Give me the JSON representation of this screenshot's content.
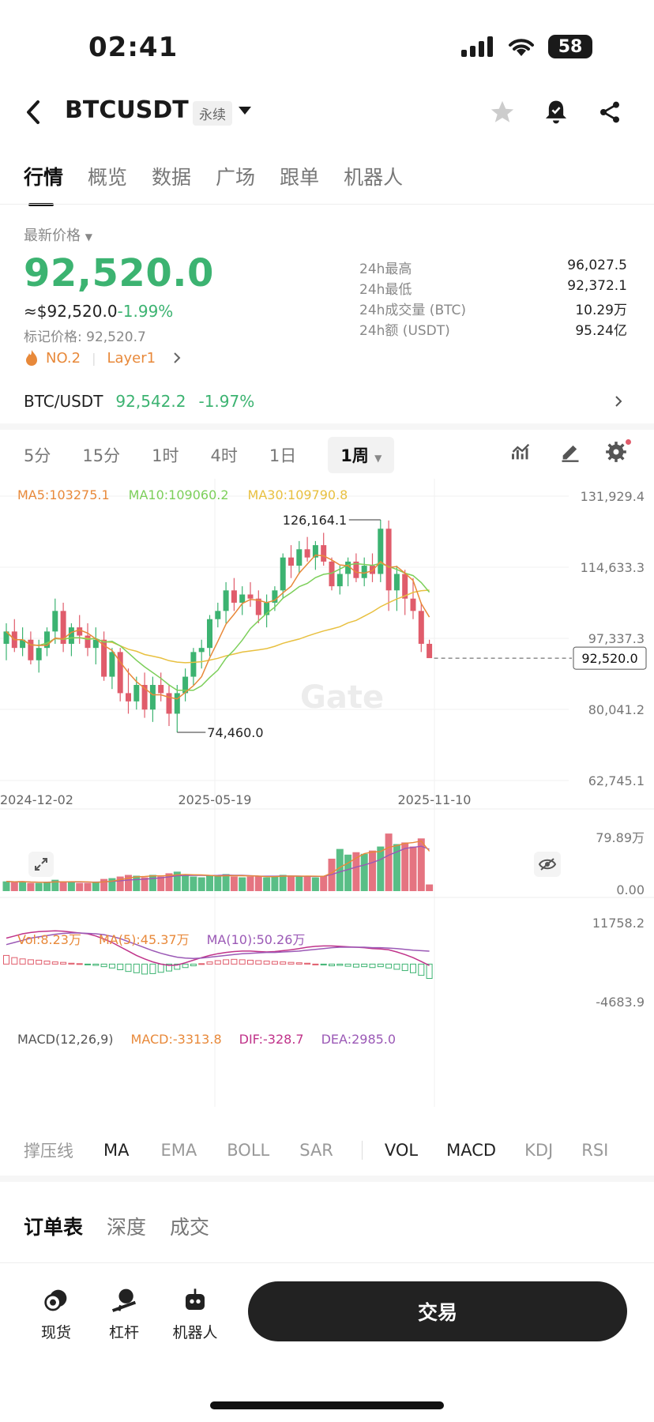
{
  "status": {
    "time": "02:41",
    "battery": "58"
  },
  "header": {
    "symbol": "BTCUSDT",
    "badge": "永续"
  },
  "tabs": [
    "行情",
    "概览",
    "数据",
    "广场",
    "跟单",
    "机器人"
  ],
  "price": {
    "latest_label": "最新价格",
    "last": "92,520.0",
    "usd_approx": "≈$92,520.0",
    "change_pct": "-1.99%",
    "mark_price": "标记价格: 92,520.7",
    "rank_tag": "NO.2",
    "sector_tag": "Layer1"
  },
  "stats": [
    {
      "label": "24h最高",
      "value": "96,027.5"
    },
    {
      "label": "24h最低",
      "value": "92,372.1"
    },
    {
      "label": "24h成交量 (BTC)",
      "value": "10.29万"
    },
    {
      "label": "24h额 (USDT)",
      "value": "95.24亿"
    }
  ],
  "spot_pair": {
    "label": "BTC/USDT",
    "price": "92,542.2",
    "change": "-1.97%"
  },
  "intervals": [
    "5分",
    "15分",
    "1时",
    "4时",
    "1日",
    "1周"
  ],
  "chart": {
    "ma_legend": {
      "ma5": "MA5:103275.1",
      "ma10": "MA10:109060.2",
      "ma30": "MA30:109790.8"
    },
    "y_ticks": [
      "131,929.4",
      "114,633.3",
      "97,337.3",
      "80,041.2",
      "62,745.1"
    ],
    "x_ticks": [
      "2024-12-02",
      "2025-05-19",
      "2025-11-10"
    ],
    "high_label": "126,164.1",
    "low_label": "74,460.0",
    "last_label": "92,520.0",
    "watermark": "Gate",
    "vol_legend": {
      "vol": "Vol:8.23万",
      "ma5": "MA(5):45.37万",
      "ma10": "MA(10):50.26万"
    },
    "vol_ticks": [
      "79.89万",
      "0.00"
    ],
    "macd_legend": {
      "name": "MACD(12,26,9)",
      "macd": "MACD:-3313.8",
      "dif": "DIF:-328.7",
      "dea": "DEA:2985.0"
    },
    "macd_ticks": [
      "11758.2",
      "-4683.9"
    ],
    "colors": {
      "up": "#3cb371",
      "down": "#e05c6b",
      "ma5": "#e8893a",
      "ma10": "#7ccf5a",
      "ma30": "#e8c040",
      "dif": "#c0338a",
      "dea": "#9b59b6"
    }
  },
  "chart_data": {
    "type": "candlestick",
    "ylim": [
      62745.1,
      131929.4
    ],
    "x_ticks": [
      "2024-12-02",
      "2025-05-19",
      "2025-11-10"
    ],
    "candles": [
      [
        96000,
        101000,
        92000,
        99000
      ],
      [
        99000,
        102000,
        94000,
        95000
      ],
      [
        95000,
        100000,
        93000,
        97000
      ],
      [
        97000,
        99000,
        91000,
        92000
      ],
      [
        92000,
        97000,
        89000,
        95000
      ],
      [
        95000,
        100000,
        93000,
        99000
      ],
      [
        99000,
        107000,
        96000,
        104000
      ],
      [
        104000,
        106000,
        94000,
        96000
      ],
      [
        96000,
        101000,
        93000,
        100000
      ],
      [
        100000,
        103000,
        96000,
        98000
      ],
      [
        98000,
        101000,
        93000,
        95000
      ],
      [
        95000,
        100000,
        91000,
        97000
      ],
      [
        97000,
        99000,
        87000,
        88000
      ],
      [
        88000,
        95000,
        85000,
        94000
      ],
      [
        94000,
        95000,
        82000,
        84000
      ],
      [
        84000,
        90000,
        79000,
        82000
      ],
      [
        82000,
        88000,
        80000,
        86000
      ],
      [
        86000,
        89000,
        78000,
        80000
      ],
      [
        80000,
        88000,
        77000,
        86000
      ],
      [
        86000,
        89000,
        82000,
        84000
      ],
      [
        84000,
        86000,
        76000,
        79000
      ],
      [
        79000,
        86000,
        74460,
        84000
      ],
      [
        84000,
        90000,
        82000,
        88000
      ],
      [
        88000,
        95000,
        86000,
        94000
      ],
      [
        94000,
        97000,
        90000,
        95000
      ],
      [
        95000,
        103000,
        93000,
        102000
      ],
      [
        102000,
        106000,
        100000,
        104000
      ],
      [
        104000,
        111000,
        101000,
        109000
      ],
      [
        109000,
        112000,
        104000,
        106000
      ],
      [
        106000,
        110000,
        103000,
        108000
      ],
      [
        108000,
        111000,
        105000,
        107000
      ],
      [
        107000,
        109000,
        101000,
        103000
      ],
      [
        103000,
        108000,
        100000,
        106000
      ],
      [
        106000,
        110000,
        104000,
        109000
      ],
      [
        109000,
        118000,
        107000,
        117000
      ],
      [
        117000,
        120000,
        112000,
        115000
      ],
      [
        115000,
        121000,
        113000,
        119000
      ],
      [
        119000,
        122000,
        116000,
        117000
      ],
      [
        117000,
        121000,
        114000,
        120000
      ],
      [
        120000,
        123000,
        115000,
        116000
      ],
      [
        116000,
        117000,
        109000,
        110000
      ],
      [
        110000,
        115000,
        108000,
        113000
      ],
      [
        113000,
        117000,
        110000,
        116000
      ],
      [
        116000,
        118000,
        111000,
        112000
      ],
      [
        112000,
        117000,
        110000,
        115000
      ],
      [
        115000,
        118000,
        111000,
        113000
      ],
      [
        113000,
        126164.1,
        111000,
        124000
      ],
      [
        124000,
        126000,
        104000,
        109000
      ],
      [
        109000,
        115000,
        104000,
        113000
      ],
      [
        113000,
        114000,
        103000,
        107000
      ],
      [
        107000,
        112000,
        102000,
        104000
      ],
      [
        104000,
        106000,
        94000,
        96000
      ],
      [
        96000,
        97000,
        93000,
        92520
      ]
    ],
    "ma5": 103275.1,
    "ma10": 109060.2,
    "ma30": 109790.8,
    "last": 92520.0,
    "high": 126164.1,
    "low": 74460.0,
    "volume_ylim": [
      0,
      79.89
    ],
    "volume_wan": [
      12,
      11,
      12,
      10,
      10,
      11,
      14,
      12,
      11,
      10,
      10,
      11,
      15,
      16,
      18,
      20,
      19,
      17,
      20,
      18,
      22,
      24,
      19,
      18,
      17,
      19,
      20,
      21,
      18,
      17,
      18,
      19,
      17,
      18,
      20,
      19,
      18,
      18,
      17,
      19,
      40,
      52,
      45,
      48,
      46,
      50,
      55,
      71,
      58,
      60,
      55,
      65,
      8.23
    ],
    "macd_ylim": [
      -4683.9,
      11758.2
    ],
    "macd_hist": [
      2000,
      1500,
      1200,
      1000,
      900,
      700,
      500,
      400,
      200,
      100,
      -100,
      -300,
      -600,
      -900,
      -1300,
      -1700,
      -2000,
      -2300,
      -2200,
      -1900,
      -1600,
      -1200,
      -800,
      -400,
      100,
      500,
      800,
      1000,
      1100,
      1000,
      900,
      800,
      700,
      600,
      500,
      400,
      300,
      200,
      0,
      -200,
      -400,
      -300,
      -500,
      -700,
      -600,
      -800,
      -600,
      -900,
      -1200,
      -1500,
      -2000,
      -2600,
      -3313.8
    ],
    "dif": [
      6000,
      6500,
      7000,
      7300,
      7500,
      7600,
      7700,
      7600,
      7400,
      7200,
      7000,
      6500,
      5800,
      5000,
      4000,
      3000,
      2000,
      1200,
      500,
      0,
      -300,
      -200,
      300,
      900,
      1500,
      2000,
      2400,
      2700,
      2900,
      3000,
      3000,
      2900,
      2800,
      2900,
      3100,
      3300,
      3600,
      3900,
      4100,
      4200,
      4200,
      4100,
      4000,
      3900,
      3800,
      3600,
      3500,
      3300,
      2800,
      2200,
      1500,
      600,
      -328.7
    ],
    "dea": [
      4500,
      5000,
      5500,
      6000,
      6300,
      6600,
      6900,
      7100,
      7200,
      7200,
      7100,
      7000,
      6800,
      6400,
      5900,
      5200,
      4500,
      3800,
      3100,
      2500,
      2000,
      1600,
      1400,
      1300,
      1400,
      1600,
      1800,
      2000,
      2200,
      2400,
      2500,
      2600,
      2700,
      2700,
      2800,
      2900,
      3000,
      3200,
      3400,
      3600,
      3800,
      3900,
      3900,
      3900,
      3900,
      3800,
      3800,
      3700,
      3600,
      3400,
      3200,
      3100,
      2985.0
    ]
  },
  "indicators": [
    "撑压线",
    "MA",
    "EMA",
    "BOLL",
    "SAR",
    "VOL",
    "MACD",
    "KDJ",
    "RSI"
  ],
  "order_tabs": [
    "订单表",
    "深度",
    "成交"
  ],
  "bottom_nav": [
    "现货",
    "杠杆",
    "机器人"
  ],
  "trade_button": "交易"
}
